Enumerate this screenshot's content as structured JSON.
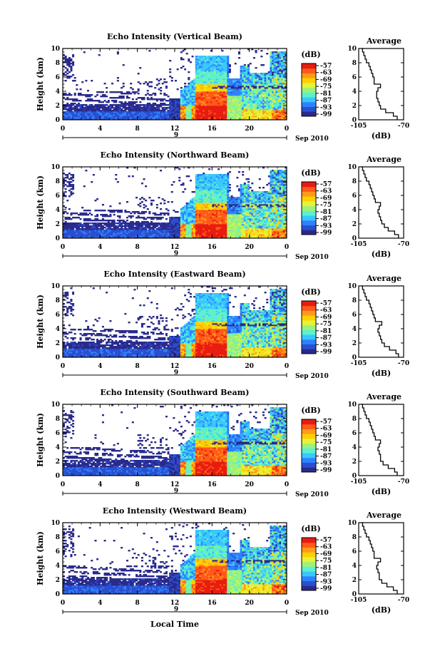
{
  "page": {
    "width": 617,
    "height": 929
  },
  "shared": {
    "ylabel": "Height (km)",
    "xlabel": "Local Time",
    "date_label": "Sep 2010",
    "day_label": "9",
    "colorbar_title": "(dB)",
    "colorbar_ticks": [
      "-57",
      "-63",
      "-69",
      "-75",
      "-81",
      "-87",
      "-93",
      "-99"
    ],
    "avg_title": "Average",
    "avg_xlabel": "(dB)",
    "avg_xticks": [
      "-105",
      "-70"
    ]
  },
  "colors": {
    "scale": [
      "#2a2a8c",
      "#2b4fcf",
      "#2f82ff",
      "#38c8ff",
      "#5cf0d0",
      "#9cf27a",
      "#e6f23a",
      "#ffd000",
      "#ff9a1a",
      "#ff5a1a",
      "#e81c10"
    ],
    "low_echo": "#333399"
  },
  "chart_data": [
    {
      "type": "heatmap",
      "title": "Echo Intensity (Vertical Beam)",
      "xlabel": "",
      "ylabel": "Height (km)",
      "x_ticks": [
        "0",
        "4",
        "8",
        "12",
        "16",
        "20",
        "0"
      ],
      "y_ticks": [
        "0",
        "2",
        "4",
        "6",
        "8",
        "10"
      ],
      "xlim": [
        0,
        24
      ],
      "ylim": [
        0,
        10
      ],
      "colorbar": {
        "range_db": [
          -99,
          -57
        ]
      },
      "profile": {
        "title": "Average",
        "xlabel": "(dB)",
        "xlim": [
          -105,
          -70
        ],
        "ylim": [
          0,
          10
        ],
        "height": [
          0,
          0.5,
          1,
          1.5,
          2,
          2.5,
          3,
          3.5,
          4,
          4.5,
          5,
          5.5,
          6,
          6.5,
          7,
          7.5,
          8,
          8.5,
          9,
          9.5,
          10
        ],
        "db": [
          -75,
          -78,
          -84,
          -88,
          -89,
          -90,
          -91,
          -91,
          -90,
          -88,
          -93,
          -93,
          -94,
          -95,
          -96,
          -97,
          -99,
          -100,
          -101,
          -102,
          -103
        ]
      }
    },
    {
      "type": "heatmap",
      "title": "Echo Intensity (Northward Beam)",
      "xlabel": "",
      "ylabel": "Height (km)",
      "x_ticks": [
        "0",
        "4",
        "8",
        "12",
        "16",
        "20",
        "0"
      ],
      "y_ticks": [
        "0",
        "2",
        "4",
        "6",
        "8",
        "10"
      ],
      "xlim": [
        0,
        24
      ],
      "ylim": [
        0,
        10
      ],
      "colorbar": {
        "range_db": [
          -99,
          -57
        ]
      },
      "profile": {
        "title": "Average",
        "xlabel": "(dB)",
        "xlim": [
          -105,
          -70
        ],
        "ylim": [
          0,
          10
        ],
        "height": [
          0,
          0.5,
          1,
          1.5,
          2,
          2.5,
          3,
          3.5,
          4,
          4.5,
          5,
          5.5,
          6,
          6.5,
          7,
          7.5,
          8,
          8.5,
          9,
          9.5,
          10
        ],
        "db": [
          -74,
          -77,
          -82,
          -85,
          -87,
          -88,
          -89,
          -90,
          -89,
          -88,
          -92,
          -93,
          -94,
          -95,
          -96,
          -97,
          -99,
          -100,
          -101,
          -102,
          -103
        ]
      }
    },
    {
      "type": "heatmap",
      "title": "Echo Intensity (Eastward Beam)",
      "xlabel": "",
      "ylabel": "Height (km)",
      "x_ticks": [
        "0",
        "4",
        "8",
        "12",
        "16",
        "20",
        "0"
      ],
      "y_ticks": [
        "0",
        "2",
        "4",
        "6",
        "8",
        "10"
      ],
      "xlim": [
        0,
        24
      ],
      "ylim": [
        0,
        10
      ],
      "colorbar": {
        "range_db": [
          -99,
          -57
        ]
      },
      "profile": {
        "title": "Average",
        "xlabel": "(dB)",
        "xlim": [
          -105,
          -70
        ],
        "ylim": [
          0,
          10
        ],
        "height": [
          0,
          0.5,
          1,
          1.5,
          2,
          2.5,
          3,
          3.5,
          4,
          4.5,
          5,
          5.5,
          6,
          6.5,
          7,
          7.5,
          8,
          8.5,
          9,
          9.5,
          10
        ],
        "db": [
          -74,
          -76,
          -81,
          -85,
          -87,
          -88,
          -89,
          -90,
          -89,
          -87,
          -92,
          -93,
          -94,
          -95,
          -96,
          -97,
          -99,
          -100,
          -101,
          -102,
          -103
        ]
      }
    },
    {
      "type": "heatmap",
      "title": "Echo Intensity (Southward Beam)",
      "xlabel": "",
      "ylabel": "Height (km)",
      "x_ticks": [
        "0",
        "4",
        "8",
        "12",
        "16",
        "20",
        "0"
      ],
      "y_ticks": [
        "0",
        "2",
        "4",
        "6",
        "8",
        "10"
      ],
      "xlim": [
        0,
        24
      ],
      "ylim": [
        0,
        10
      ],
      "colorbar": {
        "range_db": [
          -99,
          -57
        ]
      },
      "profile": {
        "title": "Average",
        "xlabel": "(dB)",
        "xlim": [
          -105,
          -70
        ],
        "ylim": [
          0,
          10
        ],
        "height": [
          0,
          0.5,
          1,
          1.5,
          2,
          2.5,
          3,
          3.5,
          4,
          4.5,
          5,
          5.5,
          6,
          6.5,
          7,
          7.5,
          8,
          8.5,
          9,
          9.5,
          10
        ],
        "db": [
          -75,
          -77,
          -82,
          -86,
          -88,
          -88,
          -89,
          -90,
          -89,
          -88,
          -92,
          -93,
          -94,
          -95,
          -96,
          -97,
          -99,
          -100,
          -101,
          -102,
          -103
        ]
      }
    },
    {
      "type": "heatmap",
      "title": "Echo Intensity (Westward Beam)",
      "xlabel": "Local Time",
      "ylabel": "Height (km)",
      "x_ticks": [
        "0",
        "4",
        "8",
        "12",
        "16",
        "20",
        "0"
      ],
      "y_ticks": [
        "0",
        "2",
        "4",
        "6",
        "8",
        "10"
      ],
      "xlim": [
        0,
        24
      ],
      "ylim": [
        0,
        10
      ],
      "colorbar": {
        "range_db": [
          -99,
          -57
        ]
      },
      "profile": {
        "title": "Average",
        "xlabel": "(dB)",
        "xlim": [
          -105,
          -70
        ],
        "ylim": [
          0,
          10
        ],
        "height": [
          0,
          0.5,
          1,
          1.5,
          2,
          2.5,
          3,
          3.5,
          4,
          4.5,
          5,
          5.5,
          6,
          6.5,
          7,
          7.5,
          8,
          8.5,
          9,
          9.5,
          10
        ],
        "db": [
          -75,
          -78,
          -83,
          -87,
          -89,
          -89,
          -90,
          -91,
          -90,
          -88,
          -93,
          -93,
          -94,
          -95,
          -96,
          -97,
          -99,
          -100,
          -101,
          -102,
          -103
        ]
      }
    }
  ]
}
